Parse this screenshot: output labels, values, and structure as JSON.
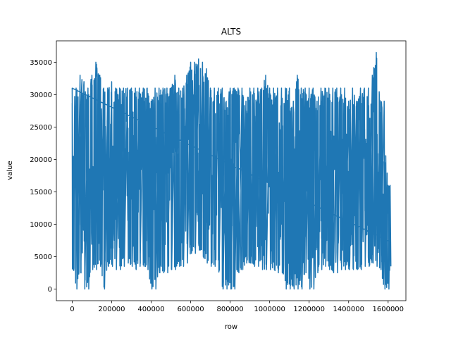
{
  "chart_data": {
    "type": "line",
    "title": "ALTS",
    "xlabel": "row",
    "ylabel": "value",
    "xlim": [
      -80000,
      1690000
    ],
    "ylim": [
      -1800,
      38300
    ],
    "x_ticks": [
      0,
      200000,
      400000,
      600000,
      800000,
      1000000,
      1200000,
      1400000,
      1600000
    ],
    "x_tick_labels": [
      "0",
      "200000",
      "400000",
      "600000",
      "800000",
      "1000000",
      "1200000",
      "1400000",
      "1600000"
    ],
    "y_ticks": [
      0,
      5000,
      10000,
      15000,
      20000,
      25000,
      30000,
      35000
    ],
    "y_tick_labels": [
      "0",
      "5000",
      "10000",
      "15000",
      "20000",
      "25000",
      "30000",
      "35000"
    ],
    "grid": false,
    "series": [
      {
        "color": "#1f77b4",
        "x": [
          0,
          20000,
          40000,
          60000,
          80000,
          100000,
          120000,
          140000,
          160000,
          180000,
          200000,
          220000,
          240000,
          260000,
          280000,
          300000,
          320000,
          340000,
          360000,
          380000,
          400000,
          420000,
          440000,
          460000,
          480000,
          500000,
          520000,
          540000,
          560000,
          580000,
          600000,
          620000,
          640000,
          660000,
          680000,
          700000,
          720000,
          740000,
          760000,
          780000,
          800000,
          820000,
          840000,
          860000,
          880000,
          900000,
          920000,
          940000,
          960000,
          980000,
          1000000,
          1020000,
          1040000,
          1060000,
          1080000,
          1100000,
          1120000,
          1140000,
          1160000,
          1180000,
          1200000,
          1220000,
          1240000,
          1260000,
          1280000,
          1300000,
          1320000,
          1340000,
          1360000,
          1380000,
          1400000,
          1420000,
          1440000,
          1460000,
          1480000,
          1500000,
          1520000,
          1540000,
          1560000,
          1580000,
          1600000,
          1610000
        ],
        "min": [
          3000,
          0,
          2500,
          0,
          0,
          3000,
          3000,
          3500,
          0,
          3500,
          3500,
          3000,
          3000,
          3500,
          4000,
          3500,
          3000,
          3500,
          3500,
          3000,
          0,
          0,
          2500,
          2500,
          2500,
          3000,
          3000,
          3500,
          3500,
          4000,
          5500,
          5500,
          6000,
          5000,
          4000,
          3500,
          3500,
          3000,
          0,
          0,
          0,
          0,
          2500,
          3000,
          4000,
          4000,
          3500,
          3500,
          3000,
          3000,
          3000,
          3000,
          2500,
          2500,
          0,
          0,
          0,
          0,
          0,
          2500,
          0,
          0,
          2500,
          3000,
          3500,
          3000,
          2500,
          2500,
          3000,
          3000,
          3000,
          3000,
          3000,
          3000,
          3500,
          3500,
          4000,
          3500,
          3000,
          0,
          0,
          3500
        ],
        "max": [
          31000,
          31000,
          33000,
          32000,
          31000,
          33000,
          35000,
          33000,
          31000,
          31000,
          32000,
          31000,
          31000,
          31000,
          31000,
          31000,
          31000,
          31000,
          31000,
          31000,
          29000,
          31000,
          31000,
          31000,
          31000,
          31000,
          33000,
          31000,
          31000,
          33000,
          35000,
          35000,
          35500,
          35000,
          34000,
          31000,
          31000,
          31000,
          31000,
          29000,
          31000,
          31000,
          31000,
          31000,
          29000,
          31000,
          31000,
          31000,
          31000,
          33000,
          31000,
          31000,
          31000,
          31000,
          31000,
          31000,
          29000,
          33000,
          31000,
          31000,
          31000,
          31000,
          29000,
          31000,
          31000,
          31000,
          31000,
          31000,
          31000,
          31000,
          29000,
          31000,
          29000,
          31000,
          31000,
          31000,
          33000,
          36500,
          29000,
          29000,
          16000,
          16000
        ]
      }
    ]
  }
}
